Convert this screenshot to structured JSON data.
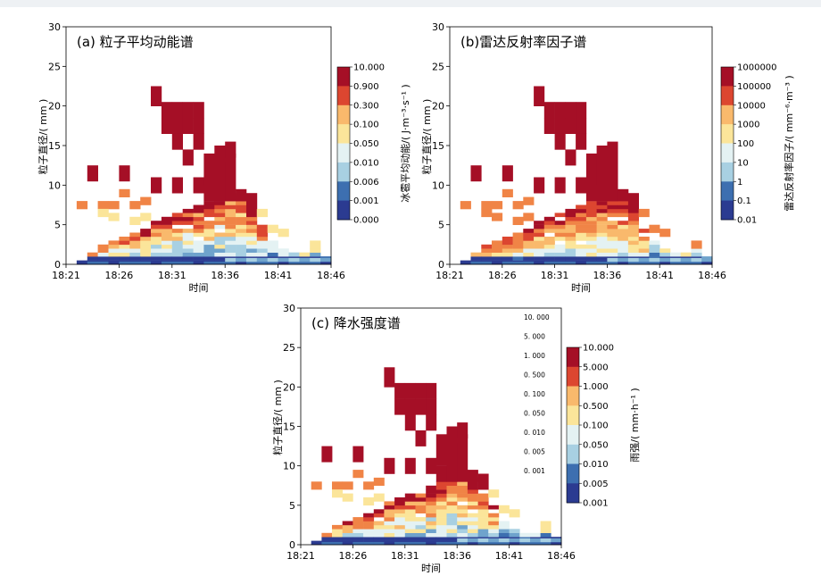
{
  "chart_data": [
    {
      "type": "heatmap",
      "title": "(a)  粒子平均动能谱",
      "xlabel": "时间",
      "ylabel": "粒子直径/( mm )",
      "ylim": [
        0,
        30
      ],
      "yticks": [
        "0",
        "5",
        "10",
        "15",
        "20",
        "25",
        "30"
      ],
      "xticks": [
        "18:21",
        "18:26",
        "18:31",
        "18:36",
        "18:41",
        "18:46"
      ],
      "colorbar": {
        "label": "冰雹平均动能/( J·m⁻³·s⁻¹ )",
        "ticks": [
          "10.000",
          "0.900",
          "0.300",
          "0.100",
          "0.050",
          "0.010",
          "0.006",
          "0.001",
          "0.000"
        ]
      }
    },
    {
      "type": "heatmap",
      "title": "(b)雷达反射率因子谱",
      "xlabel": "时间",
      "ylabel": "粒子直径/( mm )",
      "ylim": [
        0,
        30
      ],
      "yticks": [
        "0",
        "5",
        "10",
        "15",
        "20",
        "25",
        "30"
      ],
      "xticks": [
        "18:21",
        "18:26",
        "18:31",
        "18:36",
        "18:41",
        "18:46"
      ],
      "colorbar": {
        "label": "雷达反射率因子/( mm⁻⁶·m⁻³ )",
        "ticks": [
          "1000000",
          "100000",
          "10000",
          "1000",
          "100",
          "10",
          "1",
          "0.1",
          "0.01"
        ]
      }
    },
    {
      "type": "heatmap",
      "title": "(c)  降水强度谱",
      "xlabel": "时间",
      "ylabel": "粒子直径/( mm )",
      "ylim": [
        0,
        30
      ],
      "yticks": [
        "0",
        "5",
        "10",
        "15",
        "20",
        "25",
        "30"
      ],
      "xticks": [
        "18:21",
        "18:26",
        "18:31",
        "18:36",
        "18:41",
        "18:46"
      ],
      "colorbar": {
        "label": "雨强/( mm·h⁻¹ )",
        "ticks": [
          "10.000",
          "5.000",
          "1.000",
          "0.500",
          "0.100",
          "0.050",
          "0.010",
          "0.005",
          "0.001"
        ]
      },
      "inset_values": [
        "10. 000",
        "5. 000",
        "1. 000",
        "0. 500",
        "0. 100",
        "0. 050",
        "0. 010",
        "0. 005",
        "0. 001"
      ]
    }
  ],
  "palette": [
    "#2b3b91",
    "#3d6fb0",
    "#6fa3cc",
    "#a8d0e2",
    "#e4f2f3",
    "#fbe59a",
    "#f9b96c",
    "#f08446",
    "#dc4630",
    "#a50f26"
  ]
}
